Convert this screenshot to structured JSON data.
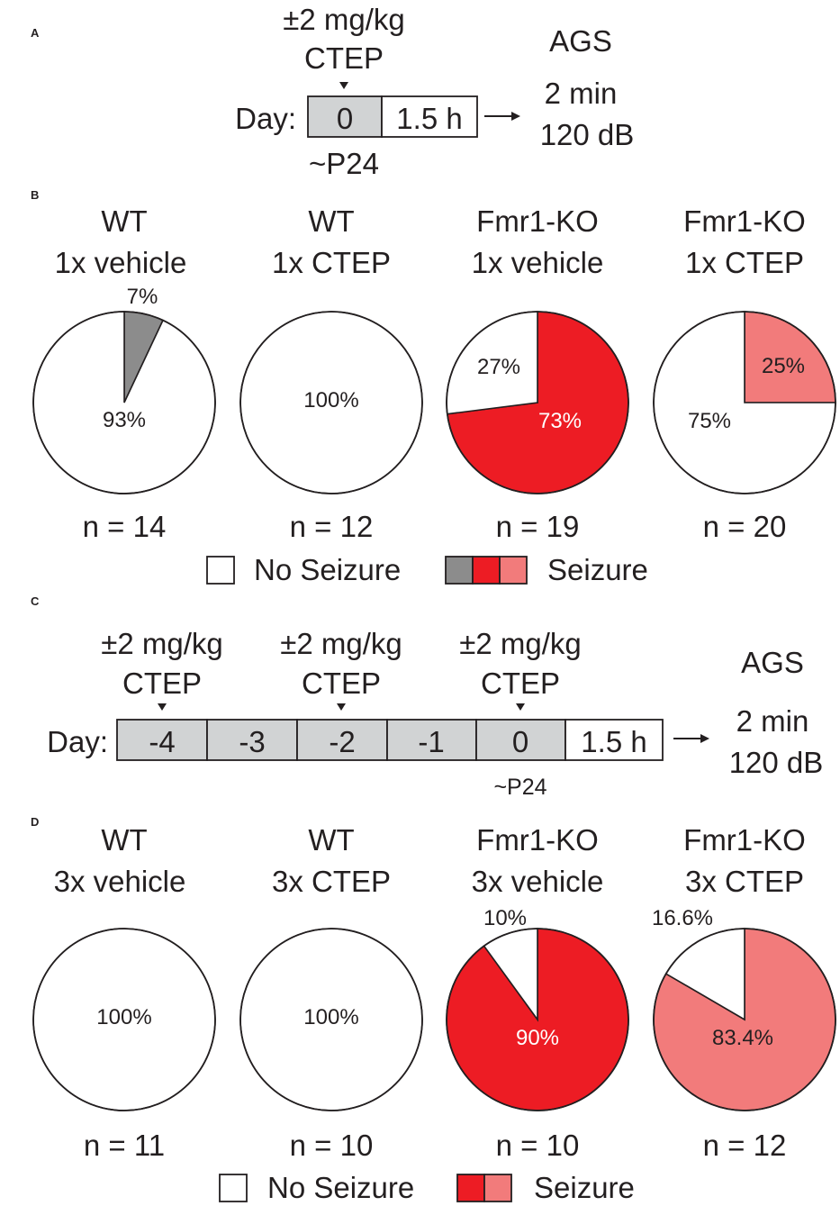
{
  "colors": {
    "no_seizure": "#ffffff",
    "grey": "#8c8c8c",
    "red": "#ed1c24",
    "pink": "#f27b7b",
    "timeline_fill": "#d1d3d4",
    "ink": "#231f20"
  },
  "panels": {
    "A": {
      "label": "A",
      "dose": "±2 mg/kg",
      "drug": "CTEP",
      "day_label": "Day:",
      "cells": [
        "0",
        "1.5 h"
      ],
      "age": "~P24",
      "outcome": {
        "title": "AGS",
        "duration": "2 min",
        "level": "120 dB"
      }
    },
    "B": {
      "label": "B"
    },
    "C": {
      "label": "C",
      "doses": [
        {
          "dose": "±2 mg/kg",
          "drug": "CTEP"
        },
        {
          "dose": "±2 mg/kg",
          "drug": "CTEP"
        },
        {
          "dose": "±2 mg/kg",
          "drug": "CTEP"
        }
      ],
      "day_label": "Day:",
      "cells": [
        "-4",
        "-3",
        "-2",
        "-1",
        "0",
        "1.5 h"
      ],
      "age": "~P24",
      "outcome": {
        "title": "AGS",
        "duration": "2 min",
        "level": "120 dB"
      }
    },
    "D": {
      "label": "D"
    }
  },
  "legend_B": {
    "no_seizure": "No Seizure",
    "seizure": "Seizure"
  },
  "legend_D": {
    "no_seizure": "No Seizure",
    "seizure": "Seizure"
  },
  "chart_data": [
    {
      "type": "pie",
      "panel": "B",
      "charts": [
        {
          "genotype": "WT",
          "treatment": "1x vehicle",
          "n": "n = 14",
          "slices": [
            {
              "label": "Seizure",
              "value": 7,
              "text": "7%",
              "color": "grey"
            },
            {
              "label": "No Seizure",
              "value": 93,
              "text": "93%",
              "color": "none"
            }
          ]
        },
        {
          "genotype": "WT",
          "treatment": "1x CTEP",
          "n": "n = 12",
          "slices": [
            {
              "label": "No Seizure",
              "value": 100,
              "text": "100%",
              "color": "none"
            }
          ]
        },
        {
          "genotype": "Fmr1-KO",
          "treatment": "1x vehicle",
          "n": "n = 19",
          "slices": [
            {
              "label": "Seizure",
              "value": 73,
              "text": "73%",
              "color": "red"
            },
            {
              "label": "No Seizure",
              "value": 27,
              "text": "27%",
              "color": "none"
            }
          ]
        },
        {
          "genotype": "Fmr1-KO",
          "treatment": "1x CTEP",
          "n": "n = 20",
          "slices": [
            {
              "label": "Seizure",
              "value": 25,
              "text": "25%",
              "color": "pink"
            },
            {
              "label": "No Seizure",
              "value": 75,
              "text": "75%",
              "color": "none"
            }
          ]
        }
      ]
    },
    {
      "type": "pie",
      "panel": "D",
      "charts": [
        {
          "genotype": "WT",
          "treatment": "3x vehicle",
          "n": "n = 11",
          "slices": [
            {
              "label": "No Seizure",
              "value": 100,
              "text": "100%",
              "color": "none"
            }
          ]
        },
        {
          "genotype": "WT",
          "treatment": "3x CTEP",
          "n": "n = 10",
          "slices": [
            {
              "label": "No Seizure",
              "value": 100,
              "text": "100%",
              "color": "none"
            }
          ]
        },
        {
          "genotype": "Fmr1-KO",
          "treatment": "3x vehicle",
          "n": "n = 10",
          "slices": [
            {
              "label": "Seizure",
              "value": 90,
              "text": "90%",
              "color": "red"
            },
            {
              "label": "No Seizure",
              "value": 10,
              "text": "10%",
              "color": "none"
            }
          ]
        },
        {
          "genotype": "Fmr1-KO",
          "treatment": "3x CTEP",
          "n": "n = 12",
          "slices": [
            {
              "label": "Seizure",
              "value": 83.4,
              "text": "83.4%",
              "color": "pink"
            },
            {
              "label": "No Seizure",
              "value": 16.6,
              "text": "16.6%",
              "color": "none"
            }
          ]
        }
      ]
    }
  ]
}
